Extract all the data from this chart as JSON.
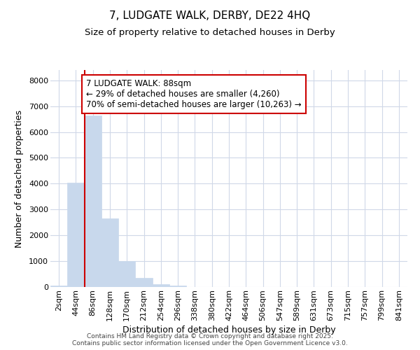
{
  "title": "7, LUDGATE WALK, DERBY, DE22 4HQ",
  "subtitle": "Size of property relative to detached houses in Derby",
  "xlabel": "Distribution of detached houses by size in Derby",
  "ylabel": "Number of detached properties",
  "categories": [
    "2sqm",
    "44sqm",
    "86sqm",
    "128sqm",
    "170sqm",
    "212sqm",
    "254sqm",
    "296sqm",
    "338sqm",
    "380sqm",
    "422sqm",
    "464sqm",
    "506sqm",
    "547sqm",
    "589sqm",
    "631sqm",
    "673sqm",
    "715sqm",
    "757sqm",
    "799sqm",
    "841sqm"
  ],
  "values": [
    50,
    4050,
    6650,
    2650,
    1000,
    340,
    120,
    50,
    5,
    0,
    0,
    0,
    0,
    0,
    0,
    0,
    0,
    0,
    0,
    0,
    0
  ],
  "bar_color": "#c8d8ec",
  "bar_edge_color": "#c8d8ec",
  "vline_x": 1.5,
  "vline_color": "#cc0000",
  "annotation_box_text": "7 LUDGATE WALK: 88sqm\n← 29% of detached houses are smaller (4,260)\n70% of semi-detached houses are larger (10,263) →",
  "box_color": "#cc0000",
  "ylim": [
    0,
    8400
  ],
  "yticks": [
    0,
    1000,
    2000,
    3000,
    4000,
    5000,
    6000,
    7000,
    8000
  ],
  "background_color": "#ffffff",
  "grid_color": "#d0d8e8",
  "footer_line1": "Contains HM Land Registry data © Crown copyright and database right 2025.",
  "footer_line2": "Contains public sector information licensed under the Open Government Licence v3.0.",
  "title_fontsize": 11,
  "subtitle_fontsize": 9.5,
  "tick_fontsize": 8,
  "label_fontsize": 9,
  "footer_fontsize": 6.5
}
